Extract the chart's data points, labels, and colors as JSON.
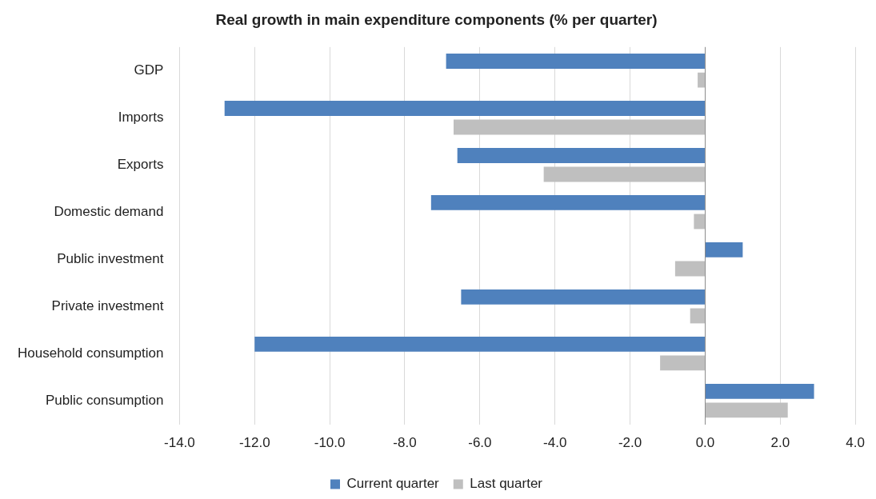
{
  "chart_data": {
    "type": "bar",
    "orientation": "horizontal",
    "title": "Real growth in main expenditure components (% per quarter)",
    "categories": [
      "GDP",
      "Imports",
      "Exports",
      "Domestic demand",
      "Public investment",
      "Private investment",
      "Household consumption",
      "Public consumption"
    ],
    "series": [
      {
        "name": "Current quarter",
        "color": "#4f81bd",
        "values": [
          -6.9,
          -12.8,
          -6.6,
          -7.3,
          1.0,
          -6.5,
          -12.0,
          2.9
        ]
      },
      {
        "name": "Last quarter",
        "color": "#bfbfbf",
        "values": [
          -0.2,
          -6.7,
          -4.3,
          -0.3,
          -0.8,
          -0.4,
          -1.2,
          2.2
        ]
      }
    ],
    "xlim": [
      -14,
      4
    ],
    "xticks": [
      {
        "value": -14,
        "label": "-14.0"
      },
      {
        "value": -12,
        "label": "-12.0"
      },
      {
        "value": -10,
        "label": "-10.0"
      },
      {
        "value": -8,
        "label": "-8.0"
      },
      {
        "value": -6,
        "label": "-6.0"
      },
      {
        "value": -4,
        "label": "-4.0"
      },
      {
        "value": -2,
        "label": "-2.0"
      },
      {
        "value": 0,
        "label": "0.0"
      },
      {
        "value": 2,
        "label": "2.0"
      },
      {
        "value": 4,
        "label": "4.0"
      }
    ],
    "grid": "x",
    "legend": "bottom"
  }
}
